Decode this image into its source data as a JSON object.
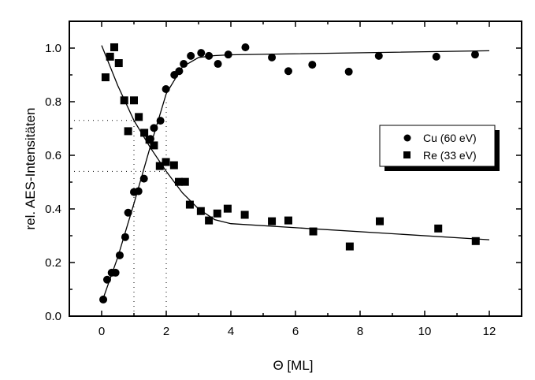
{
  "chart_data": {
    "type": "scatter",
    "title": "",
    "xlabel": "Θ [ML]",
    "ylabel": "rel. AES-Intensitäten",
    "xlim": [
      -1,
      13
    ],
    "ylim": [
      0,
      1.1
    ],
    "xticks": [
      0,
      2,
      4,
      6,
      8,
      10,
      12
    ],
    "xtick_labels": [
      "0",
      "2",
      "4",
      "6",
      "8",
      "10",
      "12"
    ],
    "yticks": [
      0,
      0.2,
      0.4,
      0.6,
      0.8,
      1.0
    ],
    "ytick_labels": [
      "0.0",
      "0.2",
      "0.4",
      "0.6",
      "0.8",
      "1.0"
    ],
    "grid": false,
    "legend_position": "center-right",
    "series": [
      {
        "name": "Cu (60 eV)",
        "marker": "circle",
        "x": [
          0.05,
          0.17,
          0.31,
          0.43,
          0.56,
          0.73,
          0.82,
          1.0,
          1.14,
          1.31,
          1.51,
          1.62,
          1.82,
          1.99,
          2.25,
          2.4,
          2.54,
          2.76,
          3.08,
          3.32,
          3.6,
          3.92,
          4.45,
          5.27,
          5.78,
          6.52,
          7.65,
          8.58,
          10.36,
          11.56
        ],
        "y": [
          0.062,
          0.136,
          0.162,
          0.162,
          0.227,
          0.295,
          0.386,
          0.463,
          0.466,
          0.513,
          0.661,
          0.702,
          0.729,
          0.847,
          0.9,
          0.914,
          0.941,
          0.971,
          0.982,
          0.971,
          0.941,
          0.976,
          1.003,
          0.965,
          0.914,
          0.938,
          0.912,
          0.971,
          0.968,
          0.976
        ],
        "fit": {
          "x": [
            0,
            0.5,
            1,
            1.5,
            2,
            2.5,
            3,
            3.5,
            4,
            12
          ],
          "y": [
            0.05,
            0.22,
            0.42,
            0.63,
            0.83,
            0.93,
            0.965,
            0.972,
            0.975,
            0.99
          ]
        }
      },
      {
        "name": "Re (33 eV)",
        "marker": "square",
        "x": [
          0.12,
          0.26,
          0.39,
          0.53,
          0.7,
          1.0,
          1.15,
          0.82,
          1.32,
          1.48,
          1.62,
          1.8,
          1.99,
          2.24,
          2.39,
          2.58,
          2.73,
          3.07,
          3.32,
          3.58,
          3.9,
          4.43,
          5.27,
          5.78,
          6.55,
          7.68,
          8.61,
          10.42,
          11.58
        ],
        "y": [
          0.891,
          0.968,
          1.003,
          0.944,
          0.805,
          0.805,
          0.743,
          0.69,
          0.684,
          0.658,
          0.637,
          0.56,
          0.575,
          0.563,
          0.501,
          0.501,
          0.416,
          0.392,
          0.357,
          0.383,
          0.401,
          0.378,
          0.354,
          0.357,
          0.316,
          0.26,
          0.354,
          0.327,
          0.28
        ],
        "fit": {
          "x": [
            0,
            0.5,
            1,
            1.5,
            2,
            2.5,
            3,
            3.5,
            4,
            12
          ],
          "y": [
            1.01,
            0.86,
            0.73,
            0.63,
            0.54,
            0.46,
            0.4,
            0.36,
            0.345,
            0.285
          ]
        }
      }
    ],
    "reference_lines": [
      {
        "type": "h",
        "y": 0.73,
        "x_to": 1
      },
      {
        "type": "v",
        "x": 1,
        "y_to": 0.73
      },
      {
        "type": "h",
        "y": 0.54,
        "x_to": 2
      },
      {
        "type": "v",
        "x": 2,
        "y_to": 0.8
      }
    ]
  }
}
